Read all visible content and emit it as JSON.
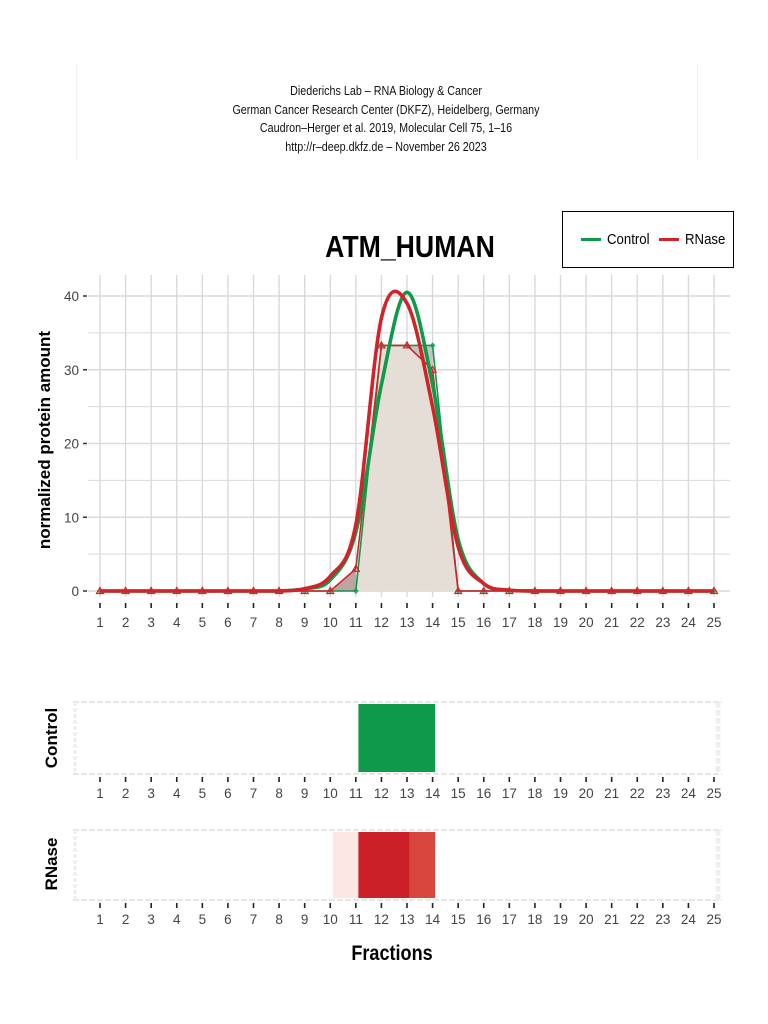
{
  "header": {
    "lines": [
      "Diederichs Lab – RNA Biology & Cancer",
      "German Cancer Research Center (DKFZ), Heidelberg, Germany",
      "Caudron–Herger et al. 2019, Molecular Cell 75, 1–16",
      "http://r–deep.dkfz.de – November 26 2023"
    ]
  },
  "legend": {
    "items": [
      {
        "label": "Control",
        "color": "#0e9a48"
      },
      {
        "label": "RNase",
        "color": "#d3232a"
      }
    ]
  },
  "colors": {
    "control": "#0e9a48",
    "rnase": "#d3232a",
    "rnase_mid": "#d9463d",
    "rnase_light": "#fde7e4",
    "overlap_fill": "#e4ded6",
    "grid": "#d9d9d9"
  },
  "chart_data": [
    {
      "type": "line",
      "title": "ATM_HUMAN",
      "xlabel": "Fractions",
      "ylabel": "normalized protein amount",
      "x": [
        1,
        2,
        3,
        4,
        5,
        6,
        7,
        8,
        9,
        10,
        11,
        12,
        13,
        14,
        15,
        16,
        17,
        18,
        19,
        20,
        21,
        22,
        23,
        24,
        25
      ],
      "ylim": [
        0,
        40
      ],
      "yticks": [
        0,
        10,
        20,
        30,
        40
      ],
      "grid": true,
      "legend_position": "top-right",
      "series": [
        {
          "name": "Control",
          "kind": "smoothed",
          "values": [
            0,
            0,
            0,
            0,
            0,
            0,
            0,
            0,
            0.3,
            1.5,
            8,
            28,
            40.5,
            28,
            7,
            1,
            0.1,
            0,
            0,
            0,
            0,
            0,
            0,
            0,
            0
          ]
        },
        {
          "name": "RNase",
          "kind": "smoothed",
          "values": [
            0,
            0,
            0,
            0,
            0,
            0,
            0,
            0,
            0.3,
            2,
            9,
            37,
            39,
            25,
            6,
            1,
            0.1,
            0,
            0,
            0,
            0,
            0,
            0,
            0,
            0
          ]
        },
        {
          "name": "Control",
          "kind": "raw",
          "values": [
            0,
            0,
            0,
            0,
            0,
            0,
            0,
            0,
            0,
            0,
            0,
            33.3,
            33.3,
            33.3,
            0,
            0,
            0,
            0,
            0,
            0,
            0,
            0,
            0,
            0,
            0
          ]
        },
        {
          "name": "RNase",
          "kind": "raw",
          "values": [
            0,
            0,
            0,
            0,
            0,
            0,
            0,
            0,
            0,
            0,
            3,
            33.3,
            33.3,
            30,
            0,
            0,
            0,
            0,
            0,
            0,
            0,
            0,
            0,
            0,
            0
          ]
        }
      ]
    },
    {
      "type": "heatmap",
      "title": "Control",
      "xlabel": "",
      "x": [
        1,
        2,
        3,
        4,
        5,
        6,
        7,
        8,
        9,
        10,
        11,
        12,
        13,
        14,
        15,
        16,
        17,
        18,
        19,
        20,
        21,
        22,
        23,
        24,
        25
      ],
      "cells": [
        {
          "from": 11.1,
          "to": 14.1,
          "intensity": "high",
          "color": "#0e9a48"
        }
      ]
    },
    {
      "type": "heatmap",
      "title": "RNase",
      "xlabel": "Fractions",
      "x": [
        1,
        2,
        3,
        4,
        5,
        6,
        7,
        8,
        9,
        10,
        11,
        12,
        13,
        14,
        15,
        16,
        17,
        18,
        19,
        20,
        21,
        22,
        23,
        24,
        25
      ],
      "cells": [
        {
          "from": 10.1,
          "to": 11.1,
          "intensity": "low",
          "color": "#fde7e4"
        },
        {
          "from": 11.1,
          "to": 13.1,
          "intensity": "high",
          "color": "#cd1f27"
        },
        {
          "from": 13.1,
          "to": 14.1,
          "intensity": "mid-high",
          "color": "#d9463d"
        }
      ]
    }
  ],
  "main": {
    "title": "ATM_HUMAN",
    "ylabel": "normalized protein amount",
    "xlabel": "Fractions"
  },
  "strips": {
    "control_label": "Control",
    "rnase_label": "RNase"
  }
}
